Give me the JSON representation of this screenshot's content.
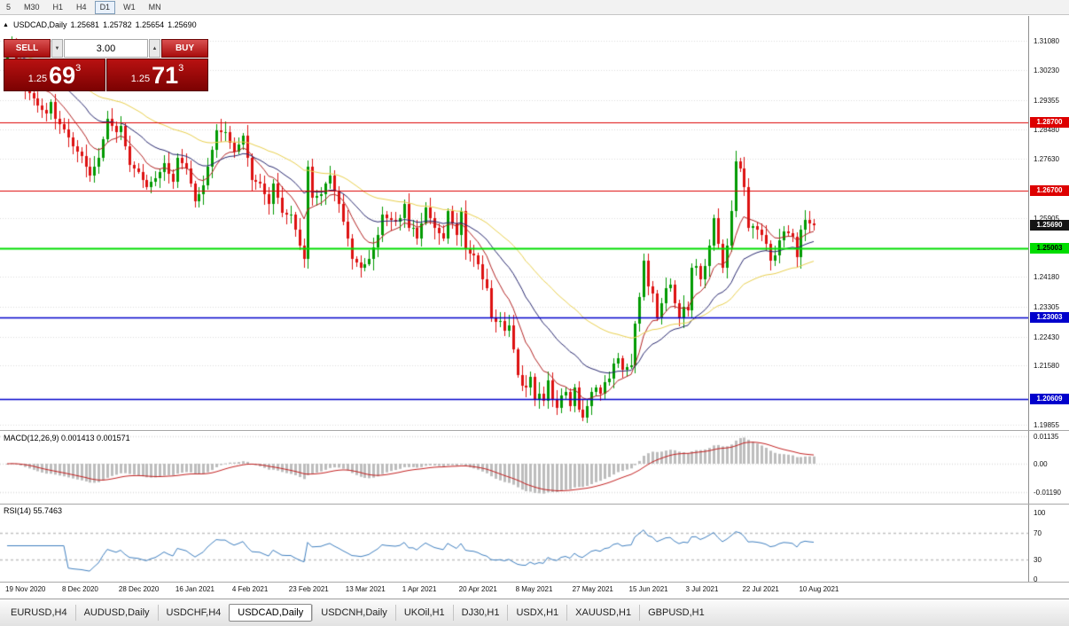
{
  "toolbar": {
    "timeframes": [
      "5",
      "M30",
      "H1",
      "H4",
      "D1",
      "W1",
      "MN"
    ],
    "active": "D1"
  },
  "chart_header": {
    "collapse_icon": "▲",
    "symbol_period": "USDCAD,Daily",
    "open": "1.25681",
    "high": "1.25782",
    "low": "1.25654",
    "close": "1.25690"
  },
  "trade_panel": {
    "sell_label": "SELL",
    "buy_label": "BUY",
    "volume": "3.00",
    "spinner_down": "▼",
    "spinner_up": "▲",
    "bid_prefix": "1.25",
    "bid_big": "69",
    "bid_sup": "3",
    "ask_prefix": "1.25",
    "ask_big": "71",
    "ask_sup": "3"
  },
  "price_scale": {
    "ticks": [
      {
        "label": "1.31080",
        "value": 1.3108
      },
      {
        "label": "1.30230",
        "value": 1.3023
      },
      {
        "label": "1.29355",
        "value": 1.29355
      },
      {
        "label": "1.28480",
        "value": 1.2848
      },
      {
        "label": "1.27630",
        "value": 1.2763
      },
      {
        "label": "1.25905",
        "value": 1.25905
      },
      {
        "label": "1.24180",
        "value": 1.2418
      },
      {
        "label": "1.23305",
        "value": 1.23305
      },
      {
        "label": "1.22430",
        "value": 1.2243
      },
      {
        "label": "1.21580",
        "value": 1.2158
      },
      {
        "label": "1.19855",
        "value": 1.19855
      }
    ],
    "badges": [
      {
        "label": "1.28700",
        "value": 1.287,
        "bg": "#dd0000",
        "fg": "#ffffff"
      },
      {
        "label": "1.26700",
        "value": 1.267,
        "bg": "#dd0000",
        "fg": "#ffffff"
      },
      {
        "label": "1.25690",
        "value": 1.2569,
        "bg": "#141414",
        "fg": "#ffffff"
      },
      {
        "label": "1.25003",
        "value": 1.25003,
        "bg": "#00dd00",
        "fg": "#000000"
      },
      {
        "label": "1.23003",
        "value": 1.23003,
        "bg": "#0000cc",
        "fg": "#ffffff"
      },
      {
        "label": "1.20609",
        "value": 1.20609,
        "bg": "#0000cc",
        "fg": "#ffffff"
      }
    ]
  },
  "indicators": {
    "macd": {
      "label": "MACD(12,26,9) 0.001413 0.001571",
      "scale": [
        {
          "label": "0.01135",
          "value": 0.01135
        },
        {
          "label": "0.00",
          "value": 0
        },
        {
          "label": "-0.01190",
          "value": -0.0119
        }
      ]
    },
    "rsi": {
      "label": "RSI(14) 55.7463",
      "scale": [
        {
          "label": "100",
          "value": 100
        },
        {
          "label": "70",
          "value": 70
        },
        {
          "label": "30",
          "value": 30
        },
        {
          "label": "0",
          "value": 0
        }
      ]
    }
  },
  "x_axis": {
    "labels": [
      "19 Nov 2020",
      "8 Dec 2020",
      "28 Dec 2020",
      "16 Jan 2021",
      "4 Feb 2021",
      "23 Feb 2021",
      "13 Mar 2021",
      "1 Apr 2021",
      "20 Apr 2021",
      "8 May 2021",
      "27 May 2021",
      "15 Jun 2021",
      "3 Jul 2021",
      "22 Jul 2021",
      "10 Aug 2021"
    ],
    "bars_per_label": 13
  },
  "tabs": {
    "items": [
      "EURUSD,H4",
      "AUDUSD,Daily",
      "USDCHF,H4",
      "USDCAD,Daily",
      "USDCNH,Daily",
      "UKOil,H1",
      "DJ30,H1",
      "USDX,H1",
      "XAUUSD,H1",
      "GBPUSD,H1"
    ],
    "active": "USDCAD,Daily"
  },
  "chart_data": {
    "type": "candlestick",
    "symbol": "USDCAD",
    "timeframe": "Daily",
    "title": "USDCAD,Daily",
    "current_ohlc": {
      "open": 1.25681,
      "high": 1.25782,
      "low": 1.25654,
      "close": 1.2569
    },
    "ylim": [
      1.19725,
      1.31754
    ],
    "closes": [
      1.307,
      1.3095,
      1.304,
      1.299,
      1.297,
      1.2955,
      1.294,
      1.292,
      1.2905,
      1.2895,
      1.293,
      1.288,
      1.2865,
      1.285,
      1.2825,
      1.28,
      1.2785,
      1.277,
      1.274,
      1.2715,
      1.274,
      1.2765,
      1.282,
      1.288,
      1.286,
      1.284,
      1.286,
      1.28,
      1.2745,
      1.2735,
      1.2725,
      1.27,
      1.268,
      1.2695,
      1.2705,
      1.2725,
      1.275,
      1.272,
      1.2695,
      1.2765,
      1.275,
      1.2735,
      1.269,
      1.264,
      1.266,
      1.2685,
      1.274,
      1.279,
      1.2845,
      1.284,
      1.284,
      1.281,
      1.2785,
      1.2805,
      1.283,
      1.2765,
      1.27,
      1.2695,
      1.269,
      1.266,
      1.263,
      1.269,
      1.265,
      1.2605,
      1.26,
      1.26,
      1.2555,
      1.251,
      1.247,
      1.274,
      1.265,
      1.2655,
      1.266,
      1.269,
      1.2715,
      1.267,
      1.263,
      1.258,
      1.253,
      1.247,
      1.246,
      1.2445,
      1.2455,
      1.247,
      1.2505,
      1.254,
      1.26,
      1.259,
      1.2585,
      1.258,
      1.259,
      1.263,
      1.256,
      1.256,
      1.253,
      1.2575,
      1.262,
      1.259,
      1.256,
      1.2545,
      1.253,
      1.261,
      1.2575,
      1.254,
      1.261,
      1.25,
      1.2485,
      1.248,
      1.2455,
      1.241,
      1.2385,
      1.23,
      1.2285,
      1.229,
      1.226,
      1.2275,
      1.2205,
      1.213,
      1.21,
      1.2095,
      1.2125,
      1.206,
      1.2075,
      1.2055,
      1.2115,
      1.206,
      1.2035,
      1.207,
      1.208,
      1.204,
      1.2095,
      1.203,
      1.2005,
      1.204,
      1.208,
      1.2095,
      1.2075,
      1.211,
      1.212,
      1.2165,
      1.218,
      1.2145,
      1.2155,
      1.216,
      1.228,
      1.236,
      1.2465,
      1.239,
      1.237,
      1.23,
      1.234,
      1.2385,
      1.2395,
      1.234,
      1.23,
      1.233,
      1.232,
      1.2445,
      1.245,
      1.241,
      1.245,
      1.251,
      1.259,
      1.2515,
      1.2445,
      1.251,
      1.261,
      1.2755,
      1.2735,
      1.268,
      1.256,
      1.2565,
      1.2555,
      1.254,
      1.2515,
      1.2465,
      1.248,
      1.2525,
      1.255,
      1.2545,
      1.2535,
      1.2475,
      1.2555,
      1.2585,
      1.2575,
      1.2569
    ],
    "levels": [
      {
        "value": 1.287,
        "color": "#dd0000",
        "width": 1
      },
      {
        "value": 1.267,
        "color": "#dd0000",
        "width": 1
      },
      {
        "value": 1.25003,
        "color": "#00dd00",
        "width": 2
      },
      {
        "value": 1.23003,
        "color": "#0000cc",
        "width": 1.5
      },
      {
        "value": 1.20609,
        "color": "#0000cc",
        "width": 1.5
      }
    ],
    "moving_averages": [
      {
        "period": 10,
        "color": "#b22222"
      },
      {
        "period": 25,
        "color": "#27276e"
      },
      {
        "period": 50,
        "color": "#e8cf4e"
      }
    ],
    "macd": {
      "fast": 12,
      "slow": 26,
      "signal_period": 9,
      "current_macd": 0.001413,
      "current_signal": 0.001571,
      "histogram_color": "#bdbdbd",
      "signal_color": "#c22020"
    },
    "rsi": {
      "period": 14,
      "current": 55.7463,
      "levels": [
        70,
        30
      ],
      "color": "#3f7fbf"
    },
    "candle_colors": {
      "up": "#009a00",
      "down": "#dd1111"
    },
    "grid_color": "#dcdcdc"
  }
}
